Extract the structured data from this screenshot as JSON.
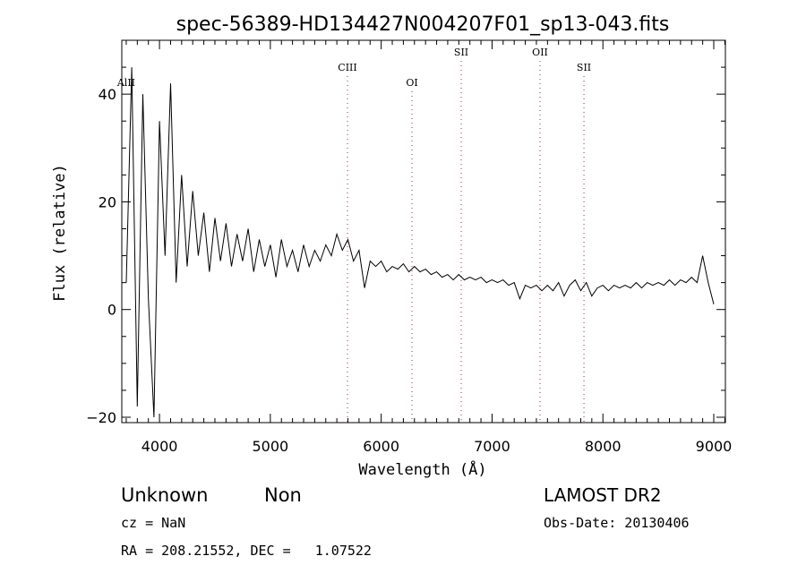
{
  "chart_data": {
    "type": "line",
    "title": "spec-56389-HD134427N004207F01_sp13-043.fits",
    "xlabel": "Wavelength (Å)",
    "ylabel": "Flux (relative)",
    "xlim": [
      3660,
      9105
    ],
    "ylim": [
      -21,
      50
    ],
    "x_ticks": [
      4000,
      5000,
      6000,
      7000,
      8000,
      9000
    ],
    "y_ticks": [
      -20,
      0,
      20,
      40
    ],
    "grid": false,
    "x_start": 3700,
    "x_step": 50,
    "flux": [
      5,
      45,
      -18,
      40,
      2,
      -20,
      35,
      10,
      42,
      5,
      25,
      8,
      22,
      10,
      18,
      7,
      17,
      9,
      16,
      8,
      14,
      9,
      15,
      7,
      13,
      8,
      12,
      6,
      13,
      8,
      11,
      7,
      12,
      8,
      11,
      9,
      12,
      10,
      14,
      11,
      13,
      9,
      11,
      4,
      9,
      8,
      9,
      7,
      8,
      7.5,
      8.5,
      7,
      8,
      7,
      7.5,
      6.5,
      7,
      6,
      6.5,
      5.5,
      6.5,
      5.5,
      6,
      5.5,
      6,
      5,
      5.5,
      5,
      5.5,
      4.5,
      5,
      2,
      4.5,
      4,
      4.5,
      3.5,
      4.5,
      3.5,
      5,
      2.5,
      4.5,
      5.5,
      3.5,
      5,
      2.5,
      4,
      4.5,
      3.5,
      4.5,
      4,
      4.5,
      4,
      5,
      4,
      5,
      4.5,
      5,
      4.5,
      5.5,
      4.5,
      5.5,
      5,
      6,
      5,
      10,
      5,
      1
    ],
    "lines": [
      {
        "label": "AlII",
        "wavelength": 3700
      },
      {
        "label": "CIII",
        "wavelength": 5696
      },
      {
        "label": "OI",
        "wavelength": 6278
      },
      {
        "label": "SII",
        "wavelength": 6722
      },
      {
        "label": "OII",
        "wavelength": 7433
      },
      {
        "label": "SII",
        "wavelength": 7829
      }
    ]
  },
  "info": {
    "class": "Unknown",
    "subclass": "Non",
    "cz": "cz = NaN",
    "coords": "RA = 208.21552, DEC =   1.07522",
    "survey": "LAMOST DR2",
    "obs_date": "Obs-Date: 20130406"
  },
  "colors": {
    "line_marker": "#8b3a3a",
    "spectrum": "#000000"
  }
}
